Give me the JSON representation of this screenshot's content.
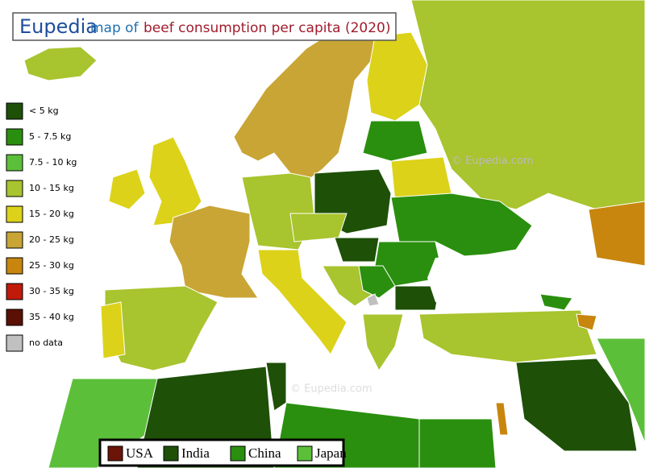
{
  "header": {
    "brand": "Eupedia",
    "title_1": "map of",
    "title_2": "beef consumption per capita (2020)"
  },
  "legend": [
    {
      "label": "< 5 kg",
      "color": "#1e5008"
    },
    {
      "label": "5 - 7.5 kg",
      "color": "#2a8f0e"
    },
    {
      "label": "7.5 - 10 kg",
      "color": "#5cbf3a"
    },
    {
      "label": "10 - 15 kg",
      "color": "#a8c42e"
    },
    {
      "label": "15 - 20 kg",
      "color": "#dcd21a"
    },
    {
      "label": "20 - 25 kg",
      "color": "#c9a535"
    },
    {
      "label": "25 - 30 kg",
      "color": "#c8860e"
    },
    {
      "label": "30 - 35 kg",
      "color": "#c01a0a"
    },
    {
      "label": "35 - 40 kg",
      "color": "#5a1005"
    },
    {
      "label": "no data",
      "color": "#c0c0c0"
    }
  ],
  "comparison_legend": [
    {
      "label": "USA",
      "color": "#6b1408"
    },
    {
      "label": "India",
      "color": "#1e5008"
    },
    {
      "label": "China",
      "color": "#2a8f0e"
    },
    {
      "label": "Japan",
      "color": "#5cbf3a"
    }
  ],
  "watermarks": [
    "© Eupedia.com",
    "© Eupedia.com"
  ]
}
